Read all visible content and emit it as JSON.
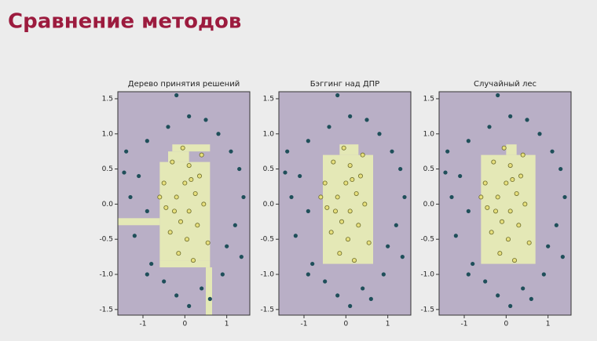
{
  "title": "Сравнение методов",
  "chart_data": [
    {
      "type": "scatter",
      "title": "Дерево принятия решений",
      "xlim": [
        -1.6,
        1.55
      ],
      "ylim": [
        -1.58,
        1.6
      ],
      "xticks": [
        -1,
        0,
        1
      ],
      "yticks": [
        -1.5,
        {
          "value": -1,
          "label": "-1.0"
        },
        -0.5,
        {
          "value": 0,
          "label": "0.0"
        },
        0.5,
        {
          "value": 1,
          "label": "1.0"
        },
        1.5
      ],
      "background": "#b9afc6",
      "region_color": "#e4e8b6",
      "regions": [
        [
          -0.6,
          0.6,
          -0.8,
          0.6
        ],
        [
          -0.3,
          0.6,
          0.75,
          0.85
        ],
        [
          -0.4,
          0.1,
          0.6,
          0.75
        ],
        [
          -1.6,
          -0.6,
          -0.3,
          -0.2
        ],
        [
          -0.6,
          0.6,
          -0.9,
          -0.8
        ],
        [
          0.5,
          0.65,
          -1.58,
          -0.9
        ]
      ],
      "series": [
        {
          "color": "#1f4f5a",
          "x": [
            -0.2,
            0.1,
            0.5,
            -0.4,
            0.8,
            -0.9,
            1.1,
            -1.4,
            1.3,
            -1.1,
            1.4,
            -1.3,
            -0.9,
            1.2,
            -1.2,
            1.0,
            -0.8,
            0.9,
            -0.5,
            0.4,
            -0.2,
            0.6,
            0.1,
            -0.9,
            1.35,
            -1.45
          ],
          "values": [
            1.55,
            1.25,
            1.2,
            1.1,
            1.0,
            0.9,
            0.75,
            0.75,
            0.5,
            0.4,
            0.1,
            0.1,
            -0.1,
            -0.3,
            -0.45,
            -0.6,
            -0.85,
            -1.0,
            -1.1,
            -1.2,
            -1.3,
            -1.35,
            -1.45,
            -1.0,
            -0.75,
            0.45
          ]
        },
        {
          "color": "#e6df7c",
          "x": [
            -0.3,
            0.1,
            0.35,
            -0.5,
            0,
            0.25,
            -0.2,
            0.45,
            -0.45,
            0.1,
            -0.1,
            0.3,
            -0.35,
            0.05,
            -0.15,
            0.2,
            0.4,
            -0.05,
            0.55,
            -0.6,
            0.15,
            -0.25
          ],
          "values": [
            0.6,
            0.55,
            0.4,
            0.3,
            0.3,
            0.15,
            0.1,
            0,
            -0.05,
            -0.1,
            -0.25,
            -0.3,
            -0.4,
            -0.5,
            -0.7,
            -0.8,
            0.7,
            0.8,
            -0.55,
            0.1,
            0.35,
            -0.1
          ]
        }
      ]
    },
    {
      "type": "scatter",
      "title": "Бэггинг над ДПР",
      "xlim": [
        -1.6,
        1.55
      ],
      "ylim": [
        -1.58,
        1.6
      ],
      "xticks": [
        -1,
        0,
        1
      ],
      "yticks": [
        -1.5,
        {
          "value": -1,
          "label": "-1.0"
        },
        -0.5,
        {
          "value": 0,
          "label": "0.0"
        },
        0.5,
        {
          "value": 1,
          "label": "1.0"
        },
        1.5
      ],
      "background": "#b9afc6",
      "region_color": "#e4e8b6",
      "regions": [
        [
          -0.55,
          0.65,
          -0.85,
          0.7
        ],
        [
          -0.15,
          0.3,
          0.7,
          0.85
        ]
      ],
      "series": [
        {
          "color": "#1f4f5a",
          "x": [
            -0.2,
            0.1,
            0.5,
            -0.4,
            0.8,
            -0.9,
            1.1,
            -1.4,
            1.3,
            -1.1,
            1.4,
            -1.3,
            -0.9,
            1.2,
            -1.2,
            1.0,
            -0.8,
            0.9,
            -0.5,
            0.4,
            -0.2,
            0.6,
            0.1,
            -0.9,
            1.35,
            -1.45
          ],
          "values": [
            1.55,
            1.25,
            1.2,
            1.1,
            1.0,
            0.9,
            0.75,
            0.75,
            0.5,
            0.4,
            0.1,
            0.1,
            -0.1,
            -0.3,
            -0.45,
            -0.6,
            -0.85,
            -1.0,
            -1.1,
            -1.2,
            -1.3,
            -1.35,
            -1.45,
            -1.0,
            -0.75,
            0.45
          ]
        },
        {
          "color": "#e6df7c",
          "x": [
            -0.3,
            0.1,
            0.35,
            -0.5,
            0,
            0.25,
            -0.2,
            0.45,
            -0.45,
            0.1,
            -0.1,
            0.3,
            -0.35,
            0.05,
            -0.15,
            0.2,
            0.4,
            -0.05,
            0.55,
            -0.6,
            0.15,
            -0.25
          ],
          "values": [
            0.6,
            0.55,
            0.4,
            0.3,
            0.3,
            0.15,
            0.1,
            0,
            -0.05,
            -0.1,
            -0.25,
            -0.3,
            -0.4,
            -0.5,
            -0.7,
            -0.8,
            0.7,
            0.8,
            -0.55,
            0.1,
            0.35,
            -0.1
          ]
        }
      ]
    },
    {
      "type": "scatter",
      "title": "Случайный лес",
      "xlim": [
        -1.6,
        1.55
      ],
      "ylim": [
        -1.58,
        1.6
      ],
      "xticks": [
        -1,
        0,
        1
      ],
      "yticks": [
        -1.5,
        {
          "value": -1,
          "label": "-1.0"
        },
        -0.5,
        {
          "value": 0,
          "label": "0.0"
        },
        0.5,
        {
          "value": 1,
          "label": "1.0"
        },
        1.5
      ],
      "background": "#b9afc6",
      "region_color": "#e4e8b6",
      "regions": [
        [
          -0.6,
          0.7,
          -0.85,
          0.7
        ],
        [
          0,
          0.25,
          0.7,
          0.85
        ]
      ],
      "series": [
        {
          "color": "#1f4f5a",
          "x": [
            -0.2,
            0.1,
            0.5,
            -0.4,
            0.8,
            -0.9,
            1.1,
            -1.4,
            1.3,
            -1.1,
            1.4,
            -1.3,
            -0.9,
            1.2,
            -1.2,
            1.0,
            -0.8,
            0.9,
            -0.5,
            0.4,
            -0.2,
            0.6,
            0.1,
            -0.9,
            1.35,
            -1.45
          ],
          "values": [
            1.55,
            1.25,
            1.2,
            1.1,
            1.0,
            0.9,
            0.75,
            0.75,
            0.5,
            0.4,
            0.1,
            0.1,
            -0.1,
            -0.3,
            -0.45,
            -0.6,
            -0.85,
            -1.0,
            -1.1,
            -1.2,
            -1.3,
            -1.35,
            -1.45,
            -1.0,
            -0.75,
            0.45
          ]
        },
        {
          "color": "#e6df7c",
          "x": [
            -0.3,
            0.1,
            0.35,
            -0.5,
            0,
            0.25,
            -0.2,
            0.45,
            -0.45,
            0.1,
            -0.1,
            0.3,
            -0.35,
            0.05,
            -0.15,
            0.2,
            0.4,
            -0.05,
            0.55,
            -0.6,
            0.15,
            -0.25
          ],
          "values": [
            0.6,
            0.55,
            0.4,
            0.3,
            0.3,
            0.15,
            0.1,
            0,
            -0.05,
            -0.1,
            -0.25,
            -0.3,
            -0.4,
            -0.5,
            -0.7,
            -0.8,
            0.7,
            0.8,
            -0.55,
            0.1,
            0.35,
            -0.1
          ]
        }
      ]
    }
  ]
}
